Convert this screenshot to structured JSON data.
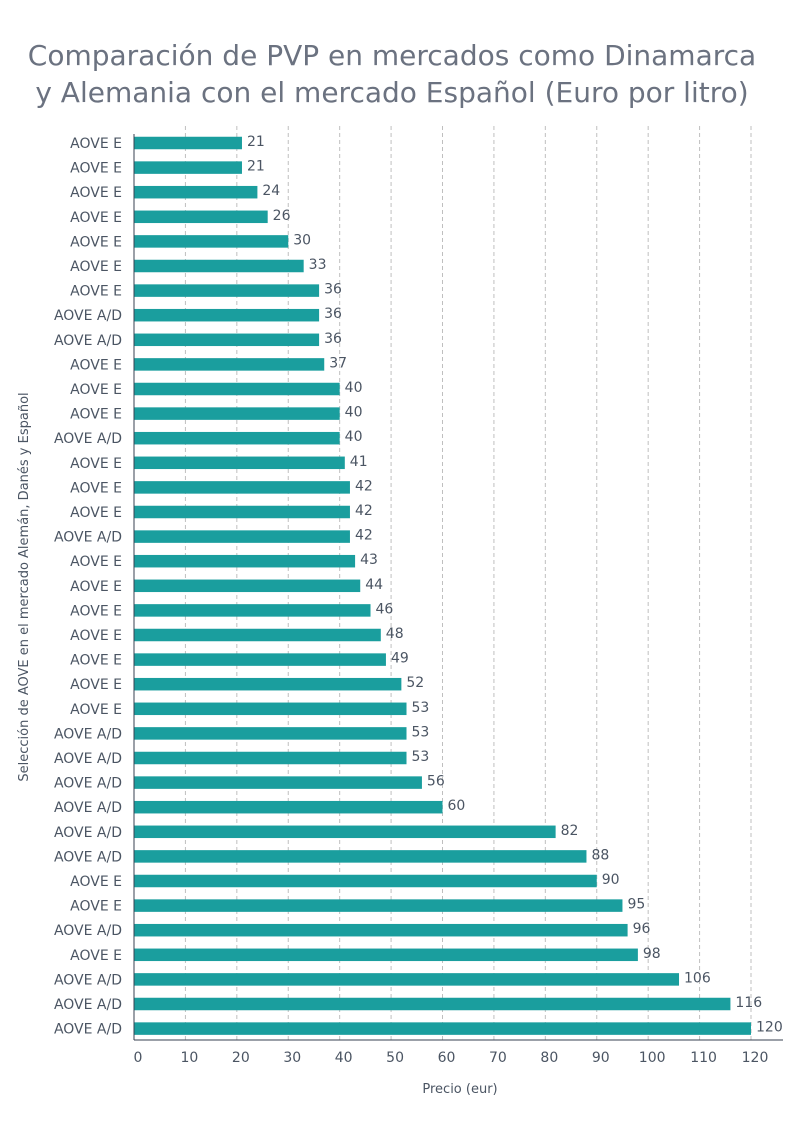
{
  "chart_data": {
    "type": "bar",
    "orientation": "horizontal",
    "title": "Comparación de PVP en mercados como Dinamarca y Alemania con el mercado Español (Euro por litro)",
    "title_lines": [
      "Comparación de PVP en mercados como Dinamarca",
      "y Alemania con el mercado Español (Euro por litro)"
    ],
    "xlabel": "Precio (eur)",
    "ylabel": "Selección de AOVE en el mercado Alemán, Danés y Español",
    "xlim": [
      0,
      120
    ],
    "xticks": [
      0,
      10,
      20,
      30,
      40,
      50,
      60,
      70,
      80,
      90,
      100,
      110,
      120
    ],
    "grid": "vertical dashed",
    "bar_color": "#1a9e9e",
    "categories": [
      "AOVE E",
      "AOVE E",
      "AOVE E",
      "AOVE E",
      "AOVE E",
      "AOVE E",
      "AOVE E",
      "AOVE A/D",
      "AOVE A/D",
      "AOVE E",
      "AOVE E",
      "AOVE E",
      "AOVE A/D",
      "AOVE E",
      "AOVE E",
      "AOVE E",
      "AOVE A/D",
      "AOVE E",
      "AOVE E",
      "AOVE E",
      "AOVE E",
      "AOVE E",
      "AOVE E",
      "AOVE E",
      "AOVE A/D",
      "AOVE A/D",
      "AOVE A/D",
      "AOVE A/D",
      "AOVE A/D",
      "AOVE A/D",
      "AOVE E",
      "AOVE E",
      "AOVE A/D",
      "AOVE E",
      "AOVE A/D",
      "AOVE A/D",
      "AOVE A/D"
    ],
    "values": [
      21,
      21,
      24,
      26,
      30,
      33,
      36,
      36,
      36,
      37,
      40,
      40,
      40,
      41,
      42,
      42,
      42,
      43,
      44,
      46,
      48,
      49,
      52,
      53,
      53,
      53,
      56,
      60,
      82,
      88,
      90,
      95,
      96,
      98,
      106,
      116,
      120
    ]
  }
}
